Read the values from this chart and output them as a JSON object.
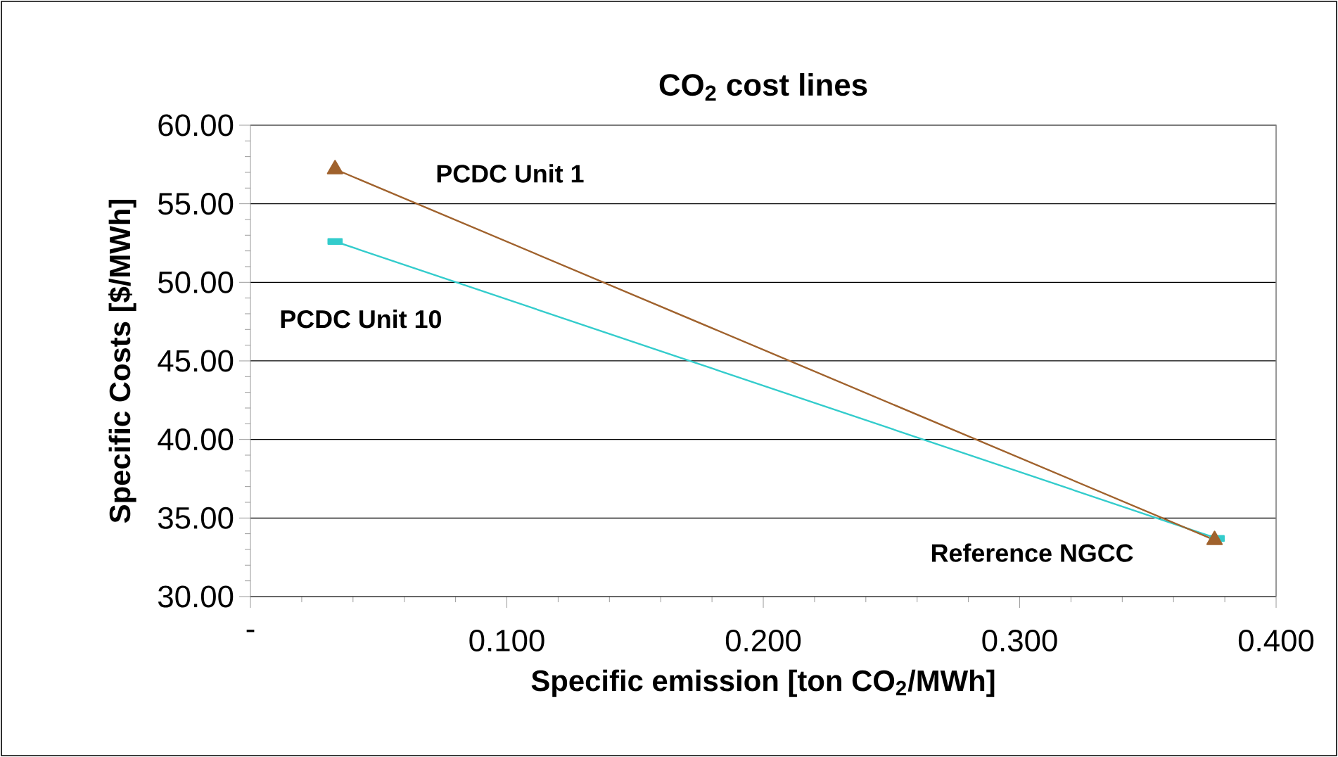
{
  "chart_data": {
    "type": "line",
    "title": "CO$_{2}$ cost lines",
    "xlabel": "Specific emission [ton CO$_{2}$/MWh]",
    "ylabel": "Specific Costs [$/MWh]",
    "xlim": [
      0,
      0.4
    ],
    "ylim": [
      30,
      60
    ],
    "xticks": [
      {
        "value": 0,
        "label": "-"
      },
      {
        "value": 0.1,
        "label": "0.100"
      },
      {
        "value": 0.2,
        "label": "0.200"
      },
      {
        "value": 0.3,
        "label": "0.300"
      },
      {
        "value": 0.4,
        "label": "0.400"
      }
    ],
    "yticks": [
      {
        "value": 30,
        "label": "30.00"
      },
      {
        "value": 35,
        "label": "35.00"
      },
      {
        "value": 40,
        "label": "40.00"
      },
      {
        "value": 45,
        "label": "45.00"
      },
      {
        "value": 50,
        "label": "50.00"
      },
      {
        "value": 55,
        "label": "55.00"
      },
      {
        "value": 60,
        "label": "60.00"
      }
    ],
    "grid": "y",
    "legend": false,
    "series": [
      {
        "name": "PCDC Unit 1",
        "color": "#a0622d",
        "marker": "triangle",
        "x": [
          0.033,
          0.376
        ],
        "values": [
          57.2,
          33.6
        ]
      },
      {
        "name": "PCDC Unit 10",
        "color": "#33cccc",
        "marker": "square",
        "x": [
          0.033,
          0.377
        ],
        "values": [
          52.6,
          33.7
        ]
      }
    ],
    "annotations": [
      "Reference NGCC"
    ]
  }
}
